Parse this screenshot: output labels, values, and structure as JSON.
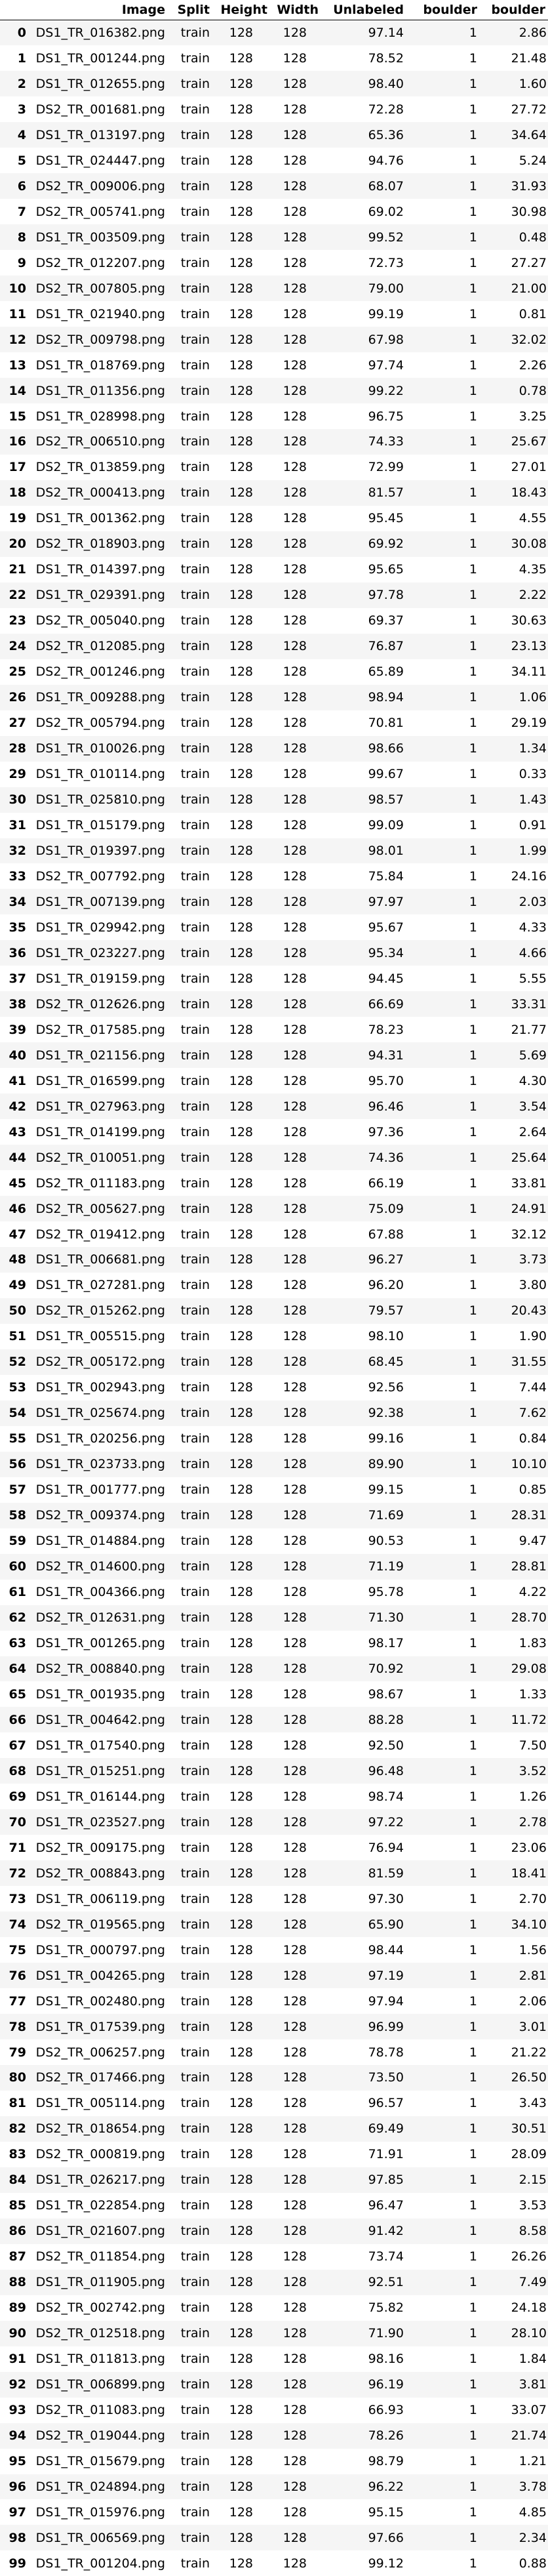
{
  "table": {
    "columns": [
      "",
      "Image",
      "Split",
      "Height",
      "Width",
      "Unlabeled",
      "boulder",
      "boulder"
    ],
    "rows": [
      [
        "0",
        "DS1_TR_016382.png",
        "train",
        "128",
        "128",
        "97.14",
        "1",
        "2.86"
      ],
      [
        "1",
        "DS1_TR_001244.png",
        "train",
        "128",
        "128",
        "78.52",
        "1",
        "21.48"
      ],
      [
        "2",
        "DS1_TR_012655.png",
        "train",
        "128",
        "128",
        "98.40",
        "1",
        "1.60"
      ],
      [
        "3",
        "DS2_TR_001681.png",
        "train",
        "128",
        "128",
        "72.28",
        "1",
        "27.72"
      ],
      [
        "4",
        "DS1_TR_013197.png",
        "train",
        "128",
        "128",
        "65.36",
        "1",
        "34.64"
      ],
      [
        "5",
        "DS1_TR_024447.png",
        "train",
        "128",
        "128",
        "94.76",
        "1",
        "5.24"
      ],
      [
        "6",
        "DS2_TR_009006.png",
        "train",
        "128",
        "128",
        "68.07",
        "1",
        "31.93"
      ],
      [
        "7",
        "DS2_TR_005741.png",
        "train",
        "128",
        "128",
        "69.02",
        "1",
        "30.98"
      ],
      [
        "8",
        "DS1_TR_003509.png",
        "train",
        "128",
        "128",
        "99.52",
        "1",
        "0.48"
      ],
      [
        "9",
        "DS2_TR_012207.png",
        "train",
        "128",
        "128",
        "72.73",
        "1",
        "27.27"
      ],
      [
        "10",
        "DS2_TR_007805.png",
        "train",
        "128",
        "128",
        "79.00",
        "1",
        "21.00"
      ],
      [
        "11",
        "DS1_TR_021940.png",
        "train",
        "128",
        "128",
        "99.19",
        "1",
        "0.81"
      ],
      [
        "12",
        "DS2_TR_009798.png",
        "train",
        "128",
        "128",
        "67.98",
        "1",
        "32.02"
      ],
      [
        "13",
        "DS1_TR_018769.png",
        "train",
        "128",
        "128",
        "97.74",
        "1",
        "2.26"
      ],
      [
        "14",
        "DS1_TR_011356.png",
        "train",
        "128",
        "128",
        "99.22",
        "1",
        "0.78"
      ],
      [
        "15",
        "DS1_TR_028998.png",
        "train",
        "128",
        "128",
        "96.75",
        "1",
        "3.25"
      ],
      [
        "16",
        "DS2_TR_006510.png",
        "train",
        "128",
        "128",
        "74.33",
        "1",
        "25.67"
      ],
      [
        "17",
        "DS2_TR_013859.png",
        "train",
        "128",
        "128",
        "72.99",
        "1",
        "27.01"
      ],
      [
        "18",
        "DS2_TR_000413.png",
        "train",
        "128",
        "128",
        "81.57",
        "1",
        "18.43"
      ],
      [
        "19",
        "DS1_TR_001362.png",
        "train",
        "128",
        "128",
        "95.45",
        "1",
        "4.55"
      ],
      [
        "20",
        "DS2_TR_018903.png",
        "train",
        "128",
        "128",
        "69.92",
        "1",
        "30.08"
      ],
      [
        "21",
        "DS1_TR_014397.png",
        "train",
        "128",
        "128",
        "95.65",
        "1",
        "4.35"
      ],
      [
        "22",
        "DS1_TR_029391.png",
        "train",
        "128",
        "128",
        "97.78",
        "1",
        "2.22"
      ],
      [
        "23",
        "DS2_TR_005040.png",
        "train",
        "128",
        "128",
        "69.37",
        "1",
        "30.63"
      ],
      [
        "24",
        "DS2_TR_012085.png",
        "train",
        "128",
        "128",
        "76.87",
        "1",
        "23.13"
      ],
      [
        "25",
        "DS2_TR_001246.png",
        "train",
        "128",
        "128",
        "65.89",
        "1",
        "34.11"
      ],
      [
        "26",
        "DS1_TR_009288.png",
        "train",
        "128",
        "128",
        "98.94",
        "1",
        "1.06"
      ],
      [
        "27",
        "DS2_TR_005794.png",
        "train",
        "128",
        "128",
        "70.81",
        "1",
        "29.19"
      ],
      [
        "28",
        "DS1_TR_010026.png",
        "train",
        "128",
        "128",
        "98.66",
        "1",
        "1.34"
      ],
      [
        "29",
        "DS1_TR_010114.png",
        "train",
        "128",
        "128",
        "99.67",
        "1",
        "0.33"
      ],
      [
        "30",
        "DS1_TR_025810.png",
        "train",
        "128",
        "128",
        "98.57",
        "1",
        "1.43"
      ],
      [
        "31",
        "DS1_TR_015179.png",
        "train",
        "128",
        "128",
        "99.09",
        "1",
        "0.91"
      ],
      [
        "32",
        "DS1_TR_019397.png",
        "train",
        "128",
        "128",
        "98.01",
        "1",
        "1.99"
      ],
      [
        "33",
        "DS2_TR_007792.png",
        "train",
        "128",
        "128",
        "75.84",
        "1",
        "24.16"
      ],
      [
        "34",
        "DS1_TR_007139.png",
        "train",
        "128",
        "128",
        "97.97",
        "1",
        "2.03"
      ],
      [
        "35",
        "DS1_TR_029942.png",
        "train",
        "128",
        "128",
        "95.67",
        "1",
        "4.33"
      ],
      [
        "36",
        "DS1_TR_023227.png",
        "train",
        "128",
        "128",
        "95.34",
        "1",
        "4.66"
      ],
      [
        "37",
        "DS1_TR_019159.png",
        "train",
        "128",
        "128",
        "94.45",
        "1",
        "5.55"
      ],
      [
        "38",
        "DS2_TR_012626.png",
        "train",
        "128",
        "128",
        "66.69",
        "1",
        "33.31"
      ],
      [
        "39",
        "DS2_TR_017585.png",
        "train",
        "128",
        "128",
        "78.23",
        "1",
        "21.77"
      ],
      [
        "40",
        "DS1_TR_021156.png",
        "train",
        "128",
        "128",
        "94.31",
        "1",
        "5.69"
      ],
      [
        "41",
        "DS1_TR_016599.png",
        "train",
        "128",
        "128",
        "95.70",
        "1",
        "4.30"
      ],
      [
        "42",
        "DS1_TR_027963.png",
        "train",
        "128",
        "128",
        "96.46",
        "1",
        "3.54"
      ],
      [
        "43",
        "DS1_TR_014199.png",
        "train",
        "128",
        "128",
        "97.36",
        "1",
        "2.64"
      ],
      [
        "44",
        "DS2_TR_010051.png",
        "train",
        "128",
        "128",
        "74.36",
        "1",
        "25.64"
      ],
      [
        "45",
        "DS2_TR_011183.png",
        "train",
        "128",
        "128",
        "66.19",
        "1",
        "33.81"
      ],
      [
        "46",
        "DS2_TR_005627.png",
        "train",
        "128",
        "128",
        "75.09",
        "1",
        "24.91"
      ],
      [
        "47",
        "DS2_TR_019412.png",
        "train",
        "128",
        "128",
        "67.88",
        "1",
        "32.12"
      ],
      [
        "48",
        "DS1_TR_006681.png",
        "train",
        "128",
        "128",
        "96.27",
        "1",
        "3.73"
      ],
      [
        "49",
        "DS1_TR_027281.png",
        "train",
        "128",
        "128",
        "96.20",
        "1",
        "3.80"
      ],
      [
        "50",
        "DS2_TR_015262.png",
        "train",
        "128",
        "128",
        "79.57",
        "1",
        "20.43"
      ],
      [
        "51",
        "DS1_TR_005515.png",
        "train",
        "128",
        "128",
        "98.10",
        "1",
        "1.90"
      ],
      [
        "52",
        "DS2_TR_005172.png",
        "train",
        "128",
        "128",
        "68.45",
        "1",
        "31.55"
      ],
      [
        "53",
        "DS1_TR_002943.png",
        "train",
        "128",
        "128",
        "92.56",
        "1",
        "7.44"
      ],
      [
        "54",
        "DS1_TR_025674.png",
        "train",
        "128",
        "128",
        "92.38",
        "1",
        "7.62"
      ],
      [
        "55",
        "DS1_TR_020256.png",
        "train",
        "128",
        "128",
        "99.16",
        "1",
        "0.84"
      ],
      [
        "56",
        "DS1_TR_023733.png",
        "train",
        "128",
        "128",
        "89.90",
        "1",
        "10.10"
      ],
      [
        "57",
        "DS1_TR_001777.png",
        "train",
        "128",
        "128",
        "99.15",
        "1",
        "0.85"
      ],
      [
        "58",
        "DS2_TR_009374.png",
        "train",
        "128",
        "128",
        "71.69",
        "1",
        "28.31"
      ],
      [
        "59",
        "DS1_TR_014884.png",
        "train",
        "128",
        "128",
        "90.53",
        "1",
        "9.47"
      ],
      [
        "60",
        "DS2_TR_014600.png",
        "train",
        "128",
        "128",
        "71.19",
        "1",
        "28.81"
      ],
      [
        "61",
        "DS1_TR_004366.png",
        "train",
        "128",
        "128",
        "95.78",
        "1",
        "4.22"
      ],
      [
        "62",
        "DS2_TR_012631.png",
        "train",
        "128",
        "128",
        "71.30",
        "1",
        "28.70"
      ],
      [
        "63",
        "DS1_TR_001265.png",
        "train",
        "128",
        "128",
        "98.17",
        "1",
        "1.83"
      ],
      [
        "64",
        "DS2_TR_008840.png",
        "train",
        "128",
        "128",
        "70.92",
        "1",
        "29.08"
      ],
      [
        "65",
        "DS1_TR_001935.png",
        "train",
        "128",
        "128",
        "98.67",
        "1",
        "1.33"
      ],
      [
        "66",
        "DS1_TR_004642.png",
        "train",
        "128",
        "128",
        "88.28",
        "1",
        "11.72"
      ],
      [
        "67",
        "DS1_TR_017540.png",
        "train",
        "128",
        "128",
        "92.50",
        "1",
        "7.50"
      ],
      [
        "68",
        "DS1_TR_015251.png",
        "train",
        "128",
        "128",
        "96.48",
        "1",
        "3.52"
      ],
      [
        "69",
        "DS1_TR_016144.png",
        "train",
        "128",
        "128",
        "98.74",
        "1",
        "1.26"
      ],
      [
        "70",
        "DS1_TR_023527.png",
        "train",
        "128",
        "128",
        "97.22",
        "1",
        "2.78"
      ],
      [
        "71",
        "DS2_TR_009175.png",
        "train",
        "128",
        "128",
        "76.94",
        "1",
        "23.06"
      ],
      [
        "72",
        "DS2_TR_008843.png",
        "train",
        "128",
        "128",
        "81.59",
        "1",
        "18.41"
      ],
      [
        "73",
        "DS1_TR_006119.png",
        "train",
        "128",
        "128",
        "97.30",
        "1",
        "2.70"
      ],
      [
        "74",
        "DS2_TR_019565.png",
        "train",
        "128",
        "128",
        "65.90",
        "1",
        "34.10"
      ],
      [
        "75",
        "DS1_TR_000797.png",
        "train",
        "128",
        "128",
        "98.44",
        "1",
        "1.56"
      ],
      [
        "76",
        "DS1_TR_004265.png",
        "train",
        "128",
        "128",
        "97.19",
        "1",
        "2.81"
      ],
      [
        "77",
        "DS1_TR_002480.png",
        "train",
        "128",
        "128",
        "97.94",
        "1",
        "2.06"
      ],
      [
        "78",
        "DS1_TR_017539.png",
        "train",
        "128",
        "128",
        "96.99",
        "1",
        "3.01"
      ],
      [
        "79",
        "DS2_TR_006257.png",
        "train",
        "128",
        "128",
        "78.78",
        "1",
        "21.22"
      ],
      [
        "80",
        "DS2_TR_017466.png",
        "train",
        "128",
        "128",
        "73.50",
        "1",
        "26.50"
      ],
      [
        "81",
        "DS1_TR_005114.png",
        "train",
        "128",
        "128",
        "96.57",
        "1",
        "3.43"
      ],
      [
        "82",
        "DS2_TR_018654.png",
        "train",
        "128",
        "128",
        "69.49",
        "1",
        "30.51"
      ],
      [
        "83",
        "DS2_TR_000819.png",
        "train",
        "128",
        "128",
        "71.91",
        "1",
        "28.09"
      ],
      [
        "84",
        "DS1_TR_026217.png",
        "train",
        "128",
        "128",
        "97.85",
        "1",
        "2.15"
      ],
      [
        "85",
        "DS1_TR_022854.png",
        "train",
        "128",
        "128",
        "96.47",
        "1",
        "3.53"
      ],
      [
        "86",
        "DS1_TR_021607.png",
        "train",
        "128",
        "128",
        "91.42",
        "1",
        "8.58"
      ],
      [
        "87",
        "DS2_TR_011854.png",
        "train",
        "128",
        "128",
        "73.74",
        "1",
        "26.26"
      ],
      [
        "88",
        "DS1_TR_011905.png",
        "train",
        "128",
        "128",
        "92.51",
        "1",
        "7.49"
      ],
      [
        "89",
        "DS2_TR_002742.png",
        "train",
        "128",
        "128",
        "75.82",
        "1",
        "24.18"
      ],
      [
        "90",
        "DS2_TR_012518.png",
        "train",
        "128",
        "128",
        "71.90",
        "1",
        "28.10"
      ],
      [
        "91",
        "DS1_TR_011813.png",
        "train",
        "128",
        "128",
        "98.16",
        "1",
        "1.84"
      ],
      [
        "92",
        "DS1_TR_006899.png",
        "train",
        "128",
        "128",
        "96.19",
        "1",
        "3.81"
      ],
      [
        "93",
        "DS2_TR_011083.png",
        "train",
        "128",
        "128",
        "66.93",
        "1",
        "33.07"
      ],
      [
        "94",
        "DS2_TR_019044.png",
        "train",
        "128",
        "128",
        "78.26",
        "1",
        "21.74"
      ],
      [
        "95",
        "DS1_TR_015679.png",
        "train",
        "128",
        "128",
        "98.79",
        "1",
        "1.21"
      ],
      [
        "96",
        "DS1_TR_024894.png",
        "train",
        "128",
        "128",
        "96.22",
        "1",
        "3.78"
      ],
      [
        "97",
        "DS1_TR_015976.png",
        "train",
        "128",
        "128",
        "95.15",
        "1",
        "4.85"
      ],
      [
        "98",
        "DS1_TR_006569.png",
        "train",
        "128",
        "128",
        "97.66",
        "1",
        "2.34"
      ],
      [
        "99",
        "DS1_TR_001204.png",
        "train",
        "128",
        "128",
        "99.12",
        "1",
        "0.88"
      ]
    ]
  }
}
